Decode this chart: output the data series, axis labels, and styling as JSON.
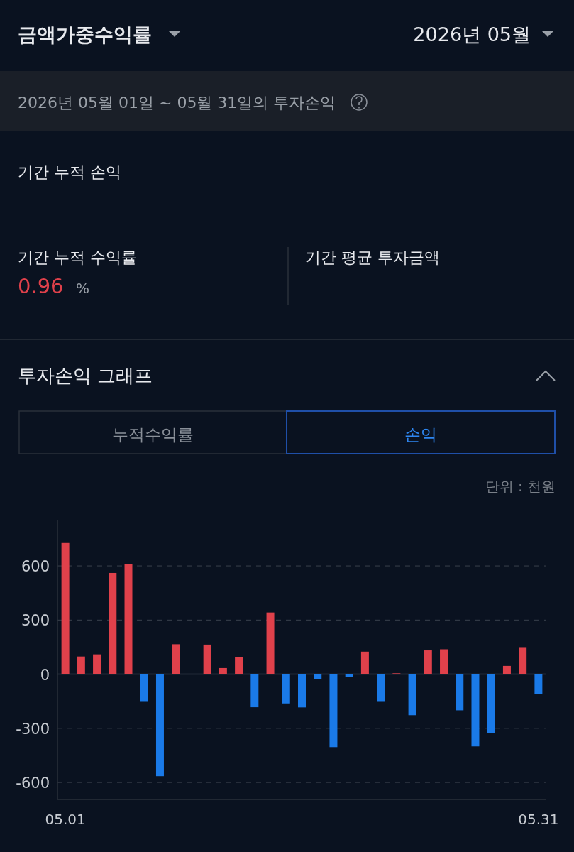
{
  "chart_data": {
    "type": "bar",
    "title": "투자손익 그래프",
    "ylabel": "단위 : 천원",
    "categories": [
      "05.01",
      null,
      null,
      null,
      null,
      null,
      null,
      null,
      null,
      null,
      null,
      null,
      null,
      null,
      null,
      null,
      null,
      null,
      null,
      null,
      null,
      null,
      null,
      null,
      null,
      null,
      null,
      null,
      null,
      null,
      "05.31"
    ],
    "values": [
      727,
      98,
      110,
      561,
      612,
      -153,
      -565,
      166,
      null,
      164,
      34,
      95,
      -183,
      342,
      -162,
      -184,
      -27,
      -404,
      -17,
      125,
      -153,
      5,
      -227,
      132,
      138,
      -200,
      -400,
      -326,
      46,
      150,
      -110
    ],
    "colors": [
      "#e0414b",
      "#e0414b",
      "#e0414b",
      "#e0414b",
      "#e0414b",
      "#1a7ae8",
      "#1a7ae8",
      "#e0414b",
      null,
      "#e0414b",
      "#e0414b",
      "#e0414b",
      "#1a7ae8",
      "#e0414b",
      "#1a7ae8",
      "#1a7ae8",
      "#1a7ae8",
      "#1a7ae8",
      "#1a7ae8",
      "#e0414b",
      "#1a7ae8",
      "#e0414b",
      "#1a7ae8",
      "#e0414b",
      "#e0414b",
      "#1a7ae8",
      "#1a7ae8",
      "#1a7ae8",
      "#e0414b",
      "#e0414b",
      "#1a7ae8"
    ],
    "ylim": [
      -694,
      852
    ],
    "yticks": [
      -600,
      -300,
      0,
      300,
      600
    ],
    "grid": "y",
    "annotations": [
      "금액가중수익률",
      "2026년 05월",
      "2026년 05월 01일 ~ 05월 31일의 투자손익",
      "기간 누적 손익",
      "기간 누적 수익률",
      "0.96",
      "%",
      "기간 평균 투자금액",
      "누적수익률",
      "손익"
    ]
  }
}
